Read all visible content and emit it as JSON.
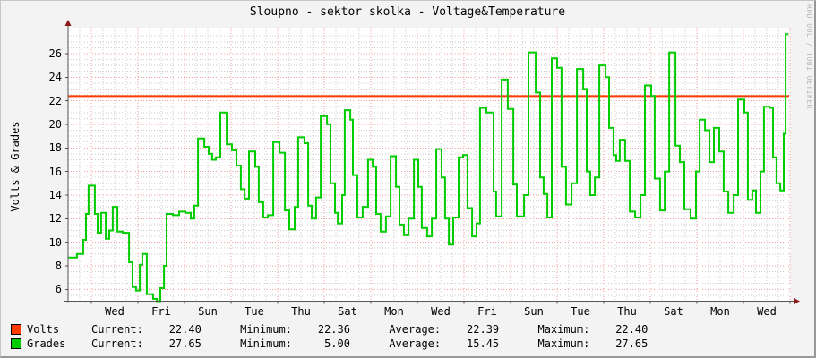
{
  "title": "Sloupno - sektor skolka - Voltage&Temperature",
  "watermark": "RRDTOOL / TOBI OETIKER",
  "colors": {
    "background": "#f3f3f3",
    "canvas": "#ffffff",
    "grid_major": "#f09c9c",
    "grid_minor": "#cccccc",
    "axis": "#555555",
    "arrow": "#8b1a1a",
    "volts": "#ff3900",
    "grades": "#00cc00",
    "watermark_text": "#b6b6b6"
  },
  "chart_data": {
    "type": "line",
    "title": "Sloupno - sektor skolka - Voltage&Temperature",
    "xlabel": "",
    "ylabel": "Volts & Grades",
    "ylim": [
      5,
      27.8
    ],
    "y_ticks": [
      6,
      8,
      10,
      12,
      14,
      16,
      18,
      20,
      22,
      24,
      26
    ],
    "y_major_step": 2,
    "y_minor_step": 0.5,
    "x_days": 31,
    "x_minor_step_days": 0.5,
    "x_major_step_days": 2,
    "x_tick_labels": [
      "Wed",
      "Fri",
      "Sun",
      "Tue",
      "Thu",
      "Sat",
      "Mon",
      "Wed",
      "Fri",
      "Sun",
      "Tue",
      "Thu",
      "Sat",
      "Mon",
      "Wed"
    ],
    "grid": "red dotted major, gray dotted minor",
    "legend_position": "bottom",
    "series": [
      {
        "name": "Volts",
        "type": "hline",
        "value": 22.4
      },
      {
        "name": "Grades",
        "type": "step",
        "points": [
          [
            0.0,
            8.7
          ],
          [
            0.38,
            9.0
          ],
          [
            0.65,
            10.2
          ],
          [
            0.77,
            12.4
          ],
          [
            0.88,
            14.8
          ],
          [
            1.15,
            12.4
          ],
          [
            1.27,
            10.8
          ],
          [
            1.42,
            12.5
          ],
          [
            1.62,
            10.3
          ],
          [
            1.77,
            11.0
          ],
          [
            1.92,
            13.0
          ],
          [
            2.12,
            10.9
          ],
          [
            2.35,
            10.8
          ],
          [
            2.62,
            8.3
          ],
          [
            2.77,
            6.2
          ],
          [
            2.92,
            5.9
          ],
          [
            3.08,
            8.1
          ],
          [
            3.19,
            9.0
          ],
          [
            3.38,
            5.6
          ],
          [
            3.65,
            5.2
          ],
          [
            3.81,
            5.0
          ],
          [
            3.96,
            6.1
          ],
          [
            4.12,
            8.0
          ],
          [
            4.23,
            12.4
          ],
          [
            4.5,
            12.3
          ],
          [
            4.77,
            12.6
          ],
          [
            5.04,
            12.5
          ],
          [
            5.27,
            12.0
          ],
          [
            5.42,
            13.1
          ],
          [
            5.58,
            18.8
          ],
          [
            5.85,
            18.1
          ],
          [
            6.04,
            17.5
          ],
          [
            6.19,
            17.0
          ],
          [
            6.35,
            17.2
          ],
          [
            6.54,
            21.0
          ],
          [
            6.81,
            18.3
          ],
          [
            7.04,
            17.8
          ],
          [
            7.23,
            16.5
          ],
          [
            7.42,
            14.5
          ],
          [
            7.58,
            13.7
          ],
          [
            7.77,
            17.7
          ],
          [
            8.04,
            16.4
          ],
          [
            8.19,
            13.4
          ],
          [
            8.38,
            12.1
          ],
          [
            8.58,
            12.3
          ],
          [
            8.81,
            18.5
          ],
          [
            9.08,
            17.6
          ],
          [
            9.31,
            12.7
          ],
          [
            9.5,
            11.1
          ],
          [
            9.73,
            13.0
          ],
          [
            9.88,
            18.9
          ],
          [
            10.15,
            18.4
          ],
          [
            10.31,
            13.1
          ],
          [
            10.46,
            12.0
          ],
          [
            10.65,
            13.8
          ],
          [
            10.85,
            20.7
          ],
          [
            11.12,
            20.0
          ],
          [
            11.27,
            15.0
          ],
          [
            11.46,
            12.5
          ],
          [
            11.58,
            11.6
          ],
          [
            11.77,
            14.0
          ],
          [
            11.88,
            21.2
          ],
          [
            12.12,
            20.4
          ],
          [
            12.23,
            15.7
          ],
          [
            12.42,
            12.1
          ],
          [
            12.65,
            13.0
          ],
          [
            12.88,
            17.0
          ],
          [
            13.08,
            16.4
          ],
          [
            13.23,
            12.4
          ],
          [
            13.42,
            10.9
          ],
          [
            13.65,
            12.2
          ],
          [
            13.85,
            17.3
          ],
          [
            14.08,
            14.7
          ],
          [
            14.23,
            11.5
          ],
          [
            14.42,
            10.6
          ],
          [
            14.62,
            12.0
          ],
          [
            14.85,
            17.0
          ],
          [
            15.04,
            14.7
          ],
          [
            15.19,
            11.2
          ],
          [
            15.42,
            10.5
          ],
          [
            15.62,
            12.0
          ],
          [
            15.81,
            17.9
          ],
          [
            16.04,
            15.5
          ],
          [
            16.19,
            12.0
          ],
          [
            16.35,
            9.8
          ],
          [
            16.54,
            12.1
          ],
          [
            16.77,
            17.2
          ],
          [
            16.96,
            17.4
          ],
          [
            17.15,
            12.9
          ],
          [
            17.35,
            10.5
          ],
          [
            17.54,
            11.6
          ],
          [
            17.69,
            21.4
          ],
          [
            17.96,
            21.0
          ],
          [
            18.27,
            14.3
          ],
          [
            18.38,
            12.2
          ],
          [
            18.62,
            23.8
          ],
          [
            18.88,
            21.3
          ],
          [
            19.12,
            14.9
          ],
          [
            19.27,
            12.2
          ],
          [
            19.58,
            14.0
          ],
          [
            19.77,
            26.1
          ],
          [
            20.08,
            22.7
          ],
          [
            20.27,
            15.5
          ],
          [
            20.42,
            14.1
          ],
          [
            20.58,
            12.1
          ],
          [
            20.77,
            25.6
          ],
          [
            21.0,
            24.8
          ],
          [
            21.19,
            16.4
          ],
          [
            21.38,
            13.2
          ],
          [
            21.62,
            15.0
          ],
          [
            21.85,
            24.7
          ],
          [
            22.12,
            23.0
          ],
          [
            22.27,
            16.0
          ],
          [
            22.42,
            14.0
          ],
          [
            22.62,
            15.5
          ],
          [
            22.81,
            25.0
          ],
          [
            23.08,
            24.0
          ],
          [
            23.23,
            19.7
          ],
          [
            23.42,
            17.4
          ],
          [
            23.54,
            16.9
          ],
          [
            23.69,
            18.7
          ],
          [
            23.92,
            16.9
          ],
          [
            24.12,
            12.6
          ],
          [
            24.35,
            12.1
          ],
          [
            24.58,
            14.0
          ],
          [
            24.77,
            23.3
          ],
          [
            25.04,
            22.4
          ],
          [
            25.19,
            15.4
          ],
          [
            25.42,
            12.7
          ],
          [
            25.62,
            16.0
          ],
          [
            25.81,
            26.1
          ],
          [
            26.08,
            18.2
          ],
          [
            26.27,
            16.8
          ],
          [
            26.46,
            12.8
          ],
          [
            26.73,
            12.0
          ],
          [
            26.96,
            16.0
          ],
          [
            27.12,
            20.4
          ],
          [
            27.35,
            19.5
          ],
          [
            27.54,
            16.8
          ],
          [
            27.73,
            19.7
          ],
          [
            27.96,
            17.7
          ],
          [
            28.15,
            14.3
          ],
          [
            28.35,
            12.5
          ],
          [
            28.58,
            14.0
          ],
          [
            28.77,
            22.1
          ],
          [
            29.04,
            21.0
          ],
          [
            29.19,
            13.6
          ],
          [
            29.38,
            14.4
          ],
          [
            29.54,
            12.5
          ],
          [
            29.73,
            16.0
          ],
          [
            29.88,
            21.5
          ],
          [
            30.12,
            21.4
          ],
          [
            30.27,
            17.2
          ],
          [
            30.42,
            15.0
          ],
          [
            30.58,
            14.4
          ],
          [
            30.73,
            19.2
          ],
          [
            30.81,
            27.65
          ],
          [
            30.93,
            27.65
          ]
        ]
      }
    ]
  },
  "legend": {
    "rows": [
      {
        "label": "Volts",
        "current": "22.40",
        "minimum": "22.36",
        "average": "22.39",
        "maximum": "22.40",
        "stats": "Current:    22.40      Minimum:    22.36      Average:    22.39      Maximum:    22.40"
      },
      {
        "label": "Grades",
        "current": "27.65",
        "minimum": "5.00",
        "average": "15.45",
        "maximum": "27.65",
        "stats": "Current:    27.65      Minimum:     5.00      Average:    15.45      Maximum:    27.65"
      }
    ]
  }
}
